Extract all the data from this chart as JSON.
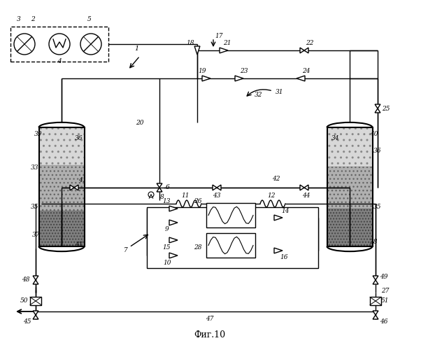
{
  "title": "Фиг.10",
  "bg_color": "#ffffff",
  "lc": "#000000",
  "lw": 1.0,
  "tank_dark": "#808080",
  "tank_medium": "#b0b0b0",
  "tank_light": "#d8d8d8"
}
